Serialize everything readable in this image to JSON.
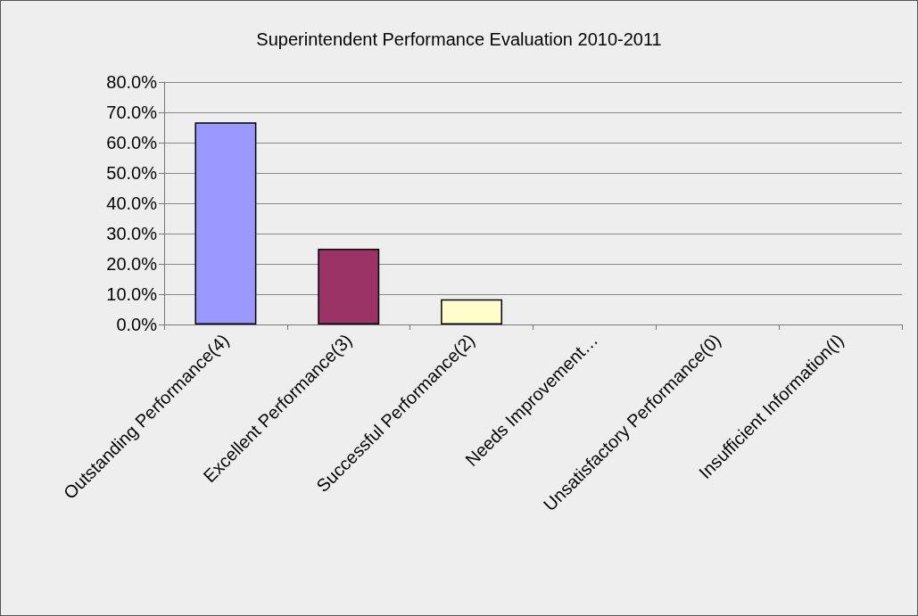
{
  "chart_data": {
    "type": "bar",
    "title": "Superintendent Performance Evaluation 2010-2011",
    "categories": [
      "Outstanding Performance(4)",
      "Excellent Performance(3)",
      "Successful Performance(2)",
      "Needs Improvement…",
      "Unsatisfactory Performance(0)",
      "Insufficient Information(I)"
    ],
    "values": [
      66.7,
      25.0,
      8.3,
      0,
      0,
      0
    ],
    "colors": [
      "#9999ff",
      "#993366",
      "#ffffcc",
      "#9999ff",
      "#993366",
      "#ffffcc"
    ],
    "ylim": [
      0,
      80
    ],
    "yticks": [
      {
        "value": 0,
        "label": "0.0%"
      },
      {
        "value": 10,
        "label": "10.0%"
      },
      {
        "value": 20,
        "label": "20.0%"
      },
      {
        "value": 30,
        "label": "30.0%"
      },
      {
        "value": 40,
        "label": "40.0%"
      },
      {
        "value": 50,
        "label": "50.0%"
      },
      {
        "value": 60,
        "label": "60.0%"
      },
      {
        "value": 70,
        "label": "70.0%"
      },
      {
        "value": 80,
        "label": "80.0%"
      }
    ],
    "grid": "y"
  }
}
